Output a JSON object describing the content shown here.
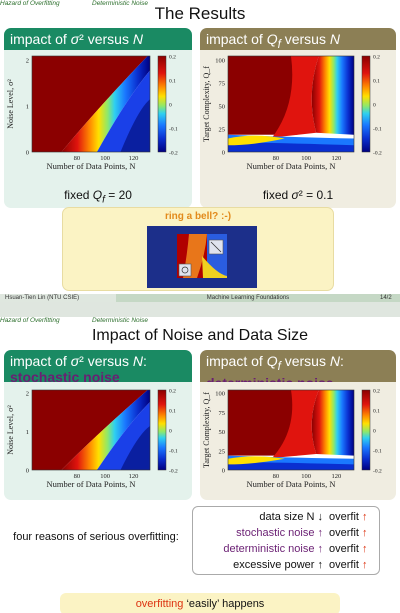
{
  "slide1": {
    "nav": {
      "left": "Hazard of Overfitting",
      "right": "Deterministic Noise"
    },
    "title": "The Results",
    "panel_left": {
      "heading": "impact of σ² versus N",
      "caption": "fixed Q_f = 20",
      "chart": {
        "ylabel": "Noise Level, σ²",
        "xlabel": "Number of Data Points, N",
        "yticks": [
          "0",
          "1",
          "2"
        ],
        "xticks": [
          "80",
          "100",
          "120"
        ],
        "cbticks": [
          "0.2",
          "0.1",
          "0",
          "-0.1",
          "-0.2"
        ]
      }
    },
    "panel_right": {
      "heading": "impact of Q_f versus N",
      "caption": "fixed σ² = 0.1",
      "chart": {
        "ylabel": "Target Complexity, Q_f",
        "xlabel": "Number of Data Points, N",
        "yticks": [
          "0",
          "25",
          "50",
          "75",
          "100"
        ],
        "xticks": [
          "80",
          "100",
          "120"
        ],
        "cbticks": [
          "0.2",
          "0.1",
          "0",
          "-0.1",
          "-0.2"
        ]
      }
    },
    "bell": "ring a bell? :-)",
    "footer": {
      "author": "Hsuan-Tien Lin  (NTU CSIE)",
      "course": "Machine Learning Foundations",
      "page": "14/2"
    }
  },
  "slide2": {
    "nav": {
      "left": "Hazard of Overfitting",
      "right": "Deterministic Noise"
    },
    "title": "Impact of Noise and Data Size",
    "panel_left": {
      "heading": "impact of σ² versus N:",
      "sub": "stochastic noise",
      "chart": {
        "ylabel": "Noise Level, σ²",
        "xlabel": "Number of Data Points, N",
        "yticks": [
          "0",
          "1",
          "2"
        ],
        "xticks": [
          "80",
          "100",
          "120"
        ],
        "cbticks": [
          "0.2",
          "0.1",
          "0",
          "-0.1",
          "-0.2"
        ]
      }
    },
    "panel_right": {
      "heading": "impact of Q_f versus N:",
      "sub": "deterministic noise",
      "chart": {
        "ylabel": "Target Complexity, Q_f",
        "xlabel": "Number of Data Points, N",
        "yticks": [
          "0",
          "25",
          "50",
          "75",
          "100"
        ],
        "xticks": [
          "80",
          "100",
          "120"
        ],
        "cbticks": [
          "0.2",
          "0.1",
          "0",
          "-0.1",
          "-0.2"
        ]
      }
    },
    "reasons_label": "four reasons of serious overfitting:",
    "reasons": [
      {
        "label": "data size N ↓",
        "color": "#111111",
        "result": "overfit",
        "arrow": "↑"
      },
      {
        "label": "stochastic noise ↑",
        "color": "#6a1f73",
        "result": "overfit",
        "arrow": "↑"
      },
      {
        "label": "deterministic noise ↑",
        "color": "#6a1f73",
        "result": "overfit",
        "arrow": "↑"
      },
      {
        "label": "excessive power ↑",
        "color": "#111111",
        "result": "overfit",
        "arrow": "↑"
      }
    ],
    "easy": {
      "red": "overfitting",
      "rest": " ‘easily’ happens"
    }
  }
}
